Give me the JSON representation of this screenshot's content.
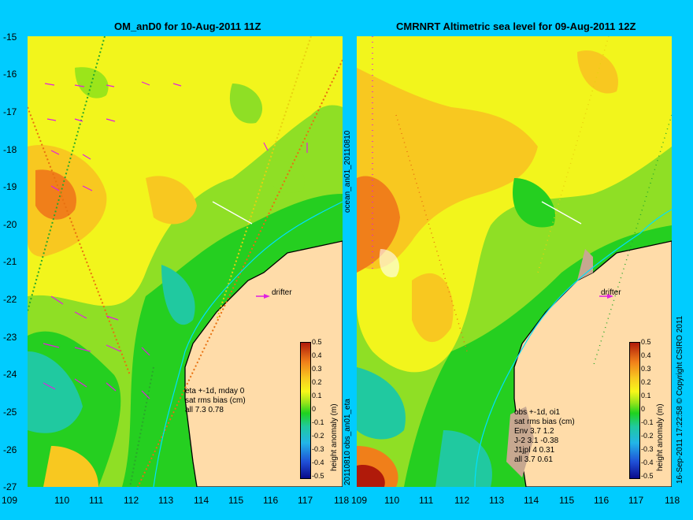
{
  "left": {
    "title": "OM_anD0 for 10-Aug-2011 11Z",
    "side_label": "20110810 obs_an01_eta",
    "drifter": "drifter",
    "stats": [
      "eta +-1d, mday 0",
      "sat rms bias (cm)",
      "all 7.3 0.78"
    ]
  },
  "right": {
    "title": "CMRNRT Altimetric sea level  for 09-Aug-2011 12Z",
    "side_label": "ocean_an01_20110810",
    "drifter": "drifter",
    "stats": [
      "obs +-1d, oi1",
      "sat rms bias (cm)",
      "Env   3.7 1.2",
      "J-2   3.1 -0.38",
      "J1jpl 4 0.31",
      "all 3.7 0.61"
    ],
    "credit": "16-Sep-2011 17:22:58   © Copyright CSIRO 2011"
  },
  "colorbar": {
    "label": "height anomaly (m)",
    "ticks": [
      "0.5",
      "0.4",
      "0.3",
      "0.2",
      "0.1",
      "0",
      "-0.1",
      "-0.2",
      "-0.3",
      "-0.4",
      "-0.5"
    ]
  },
  "axes": {
    "y_ticks": [
      "-15",
      "-16",
      "-17",
      "-18",
      "-19",
      "-20",
      "-21",
      "-22",
      "-23",
      "-24",
      "-25",
      "-26",
      "-27"
    ],
    "x_ticks": [
      "109",
      "110",
      "111",
      "112",
      "113",
      "114",
      "115",
      "116",
      "117",
      "118"
    ]
  },
  "colors": {
    "background": "#00ccff",
    "land": "#ffdca9",
    "coast": "#000000",
    "drifter": "#ff00ff"
  }
}
